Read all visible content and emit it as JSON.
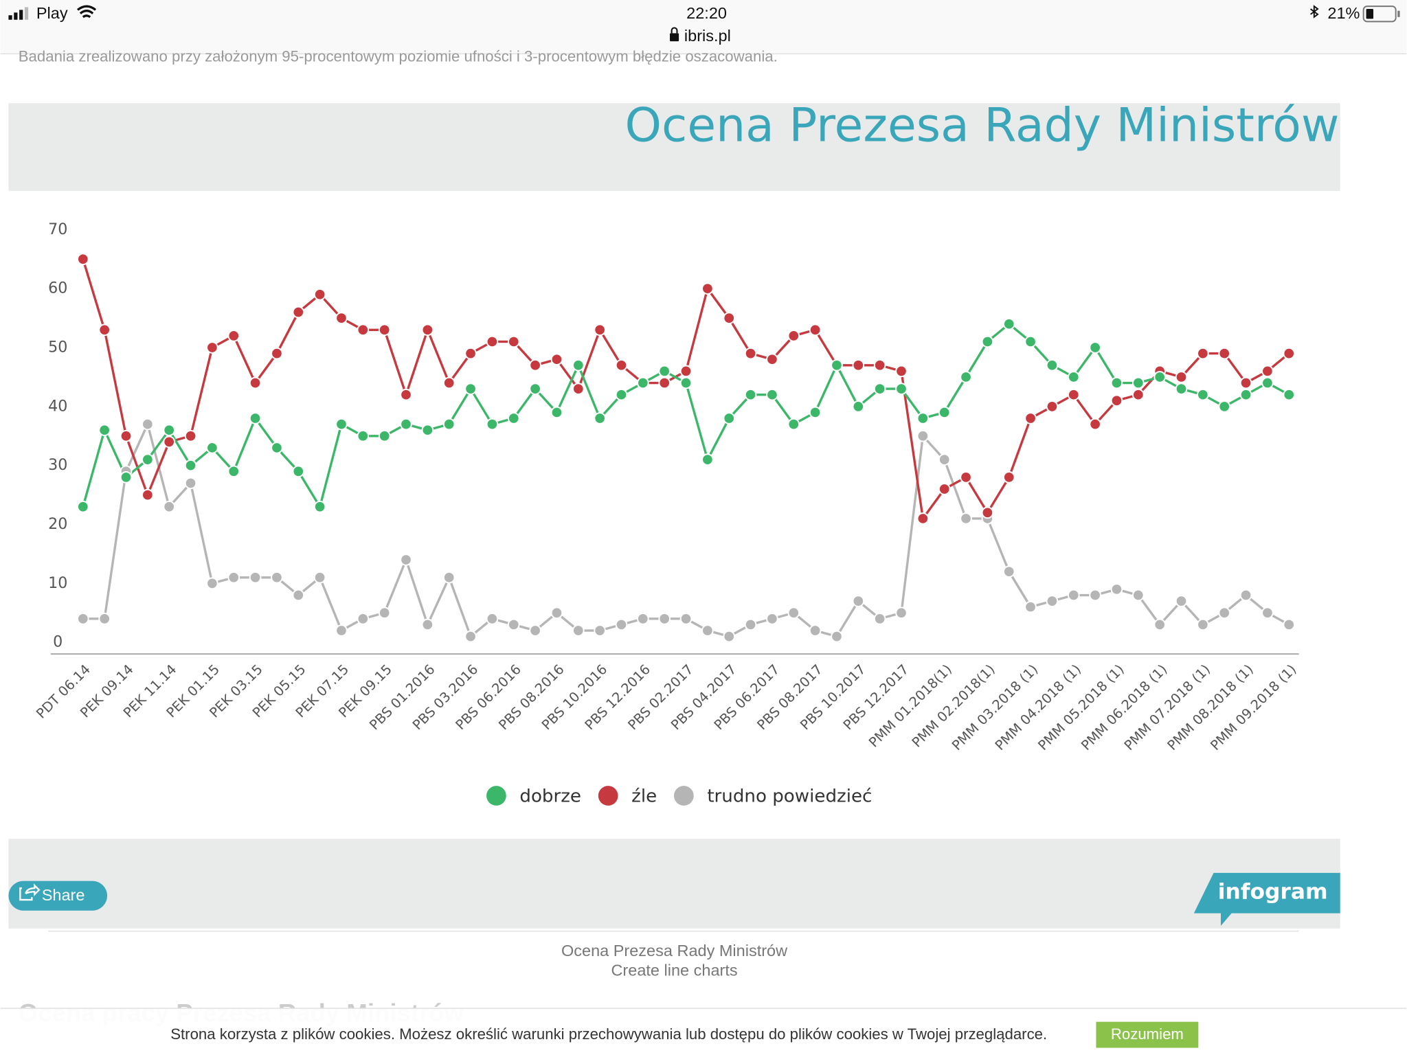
{
  "status_bar": {
    "carrier": "Play",
    "time": "22:20",
    "url": "ibris.pl",
    "battery": "21%"
  },
  "page_top_text": "Badania zrealizowano przy założonym 95-procentowym poziomie ufności i 3-procentowym błędzie oszacowania.",
  "chart_data": {
    "type": "line",
    "title": "Ocena Prezesa Rady Ministrów",
    "categories": [
      "PDT 06.14",
      null,
      "PEK 09.14",
      null,
      "PEK 11.14",
      null,
      "PEK 01.15",
      null,
      "PEK 03.15",
      null,
      "PEK 05.15",
      null,
      "PEK 07.15",
      null,
      "PEK 09.15",
      null,
      "PBS 01.2016",
      null,
      "PBS 03.2016",
      null,
      "PBS 06.2016",
      null,
      "PBS 08.2016",
      null,
      "PBS 10.2016",
      null,
      "PBS 12.2016",
      null,
      "PBS 02.2017",
      null,
      "PBS 04.2017",
      null,
      "PBS 06.2017",
      null,
      "PBS 08.2017",
      null,
      "PBS 10.2017",
      null,
      "PBS 12.2017",
      null,
      "PMM 01.2018(1)",
      null,
      "PMM 02.2018(1)",
      null,
      "PMM 03.2018 (1)",
      null,
      "PMM 04.2018 (1)",
      null,
      "PMM 05.2018 (1)",
      null,
      "PMM 06.2018 (1)",
      null,
      "PMM 07.2018 (1)",
      null,
      "PMM 08.2018 (1)",
      null,
      "PMM 09.2018 (1)"
    ],
    "series": [
      {
        "name": "dobrze",
        "color": "#3cb76a",
        "values": [
          23,
          36,
          28,
          31,
          36,
          30,
          33,
          29,
          38,
          33,
          29,
          23,
          37,
          35,
          35,
          37,
          36,
          37,
          43,
          37,
          38,
          43,
          39,
          47,
          38,
          42,
          44,
          46,
          44,
          31,
          38,
          42,
          42,
          37,
          39,
          47,
          40,
          43,
          43,
          38,
          39,
          45,
          51,
          54,
          51,
          47,
          45,
          50,
          44,
          44,
          45,
          43,
          42,
          40,
          42,
          44,
          42
        ]
      },
      {
        "name": "źle",
        "color": "#c5393f",
        "values": [
          65,
          53,
          35,
          25,
          34,
          35,
          50,
          52,
          44,
          49,
          56,
          59,
          55,
          53,
          53,
          42,
          53,
          44,
          49,
          51,
          51,
          47,
          48,
          43,
          53,
          47,
          44,
          44,
          46,
          60,
          55,
          49,
          48,
          52,
          53,
          47,
          47,
          47,
          46,
          21,
          26,
          28,
          22,
          28,
          38,
          40,
          42,
          37,
          41,
          42,
          46,
          45,
          49,
          49,
          44,
          46,
          49
        ]
      },
      {
        "name": "trudno powiedzieć",
        "color": "#b5b5b5",
        "values": [
          4,
          4,
          29,
          37,
          23,
          27,
          10,
          11,
          11,
          11,
          8,
          11,
          2,
          4,
          5,
          14,
          3,
          11,
          1,
          4,
          3,
          2,
          5,
          2,
          2,
          3,
          4,
          4,
          4,
          2,
          1,
          3,
          4,
          5,
          2,
          1,
          7,
          4,
          5,
          35,
          31,
          21,
          21,
          12,
          6,
          7,
          8,
          8,
          9,
          8,
          3,
          7,
          3,
          5,
          8,
          5,
          3
        ]
      }
    ],
    "ylim": [
      0,
      70
    ],
    "yticks": [
      0,
      10,
      20,
      30,
      40,
      50,
      60,
      70
    ],
    "grid": false,
    "legend": "bottom"
  },
  "chart_footer": {
    "share": "Share",
    "brand": "infogram"
  },
  "caption": {
    "title": "Ocena Prezesa Rady Ministrów",
    "subtitle": "Create line charts"
  },
  "next_heading": "Ocena pracy Prezesa Rady Ministrów",
  "cookie_bar": {
    "text": "Strona korzysta z plików cookies. Możesz określić warunki przechowywania lub dostępu do plików cookies w Twojej przeglądarce.",
    "button": "Rozumiem"
  }
}
